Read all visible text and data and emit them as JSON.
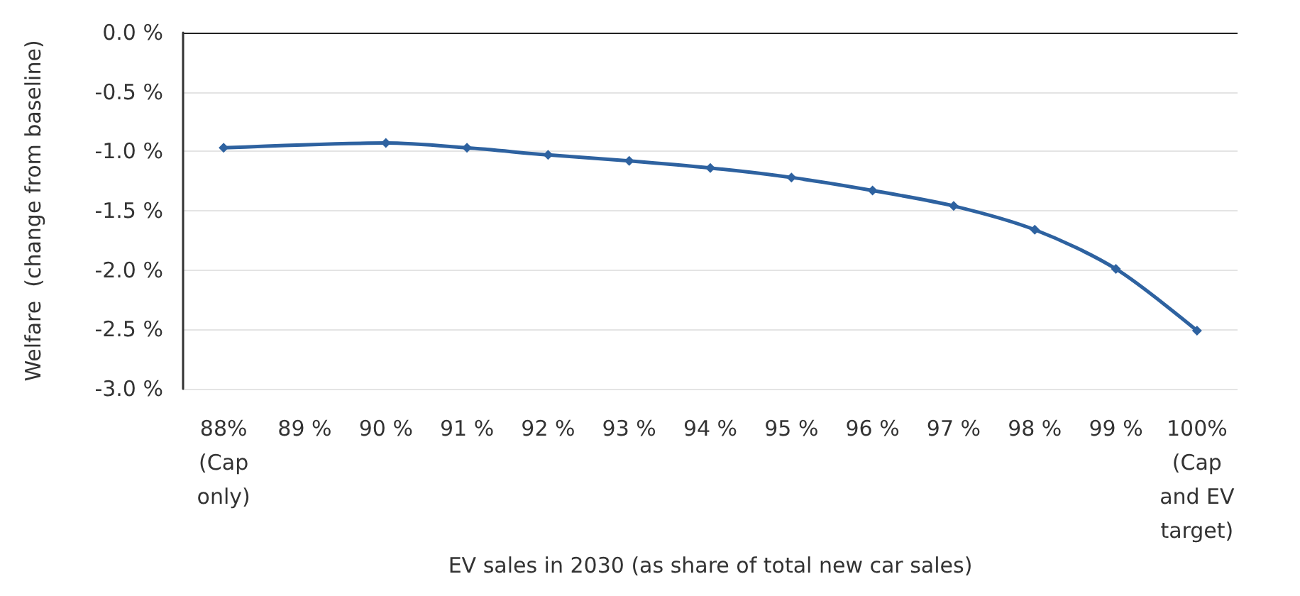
{
  "chart_data": {
    "type": "line",
    "xlabel": "EV sales in 2030 (as share of total new car sales)",
    "ylabel": "Welfare  (change from baseline)",
    "categories": [
      "88%\n(Cap\nonly)",
      "89 %",
      "90 %",
      "91 %",
      "92 %",
      "93 %",
      "94 %",
      "95 %",
      "96 %",
      "97 %",
      "98 %",
      "99 %",
      "100%\n(Cap\nand EV\ntarget)"
    ],
    "series": [
      {
        "color": "#2e62a0",
        "values": [
          -0.97,
          null,
          -0.93,
          -0.97,
          -1.03,
          -1.08,
          -1.14,
          -1.22,
          -1.33,
          -1.46,
          -1.66,
          -1.99,
          -2.51
        ]
      }
    ],
    "ylim": [
      -3,
      0
    ],
    "yticks": [
      {
        "value": -3,
        "label": "-3.0 %"
      },
      {
        "value": -2.5,
        "label": "-2.5 %"
      },
      {
        "value": -2,
        "label": "-2.0 %"
      },
      {
        "value": -1.5,
        "label": "-1.5 %"
      },
      {
        "value": -1,
        "label": "-1.0 %"
      },
      {
        "value": -0.5,
        "label": "-0.5 %"
      },
      {
        "value": 0,
        "label": "0.0 %"
      }
    ],
    "grid": "y",
    "marker": "diamond",
    "line_style": "solid"
  }
}
